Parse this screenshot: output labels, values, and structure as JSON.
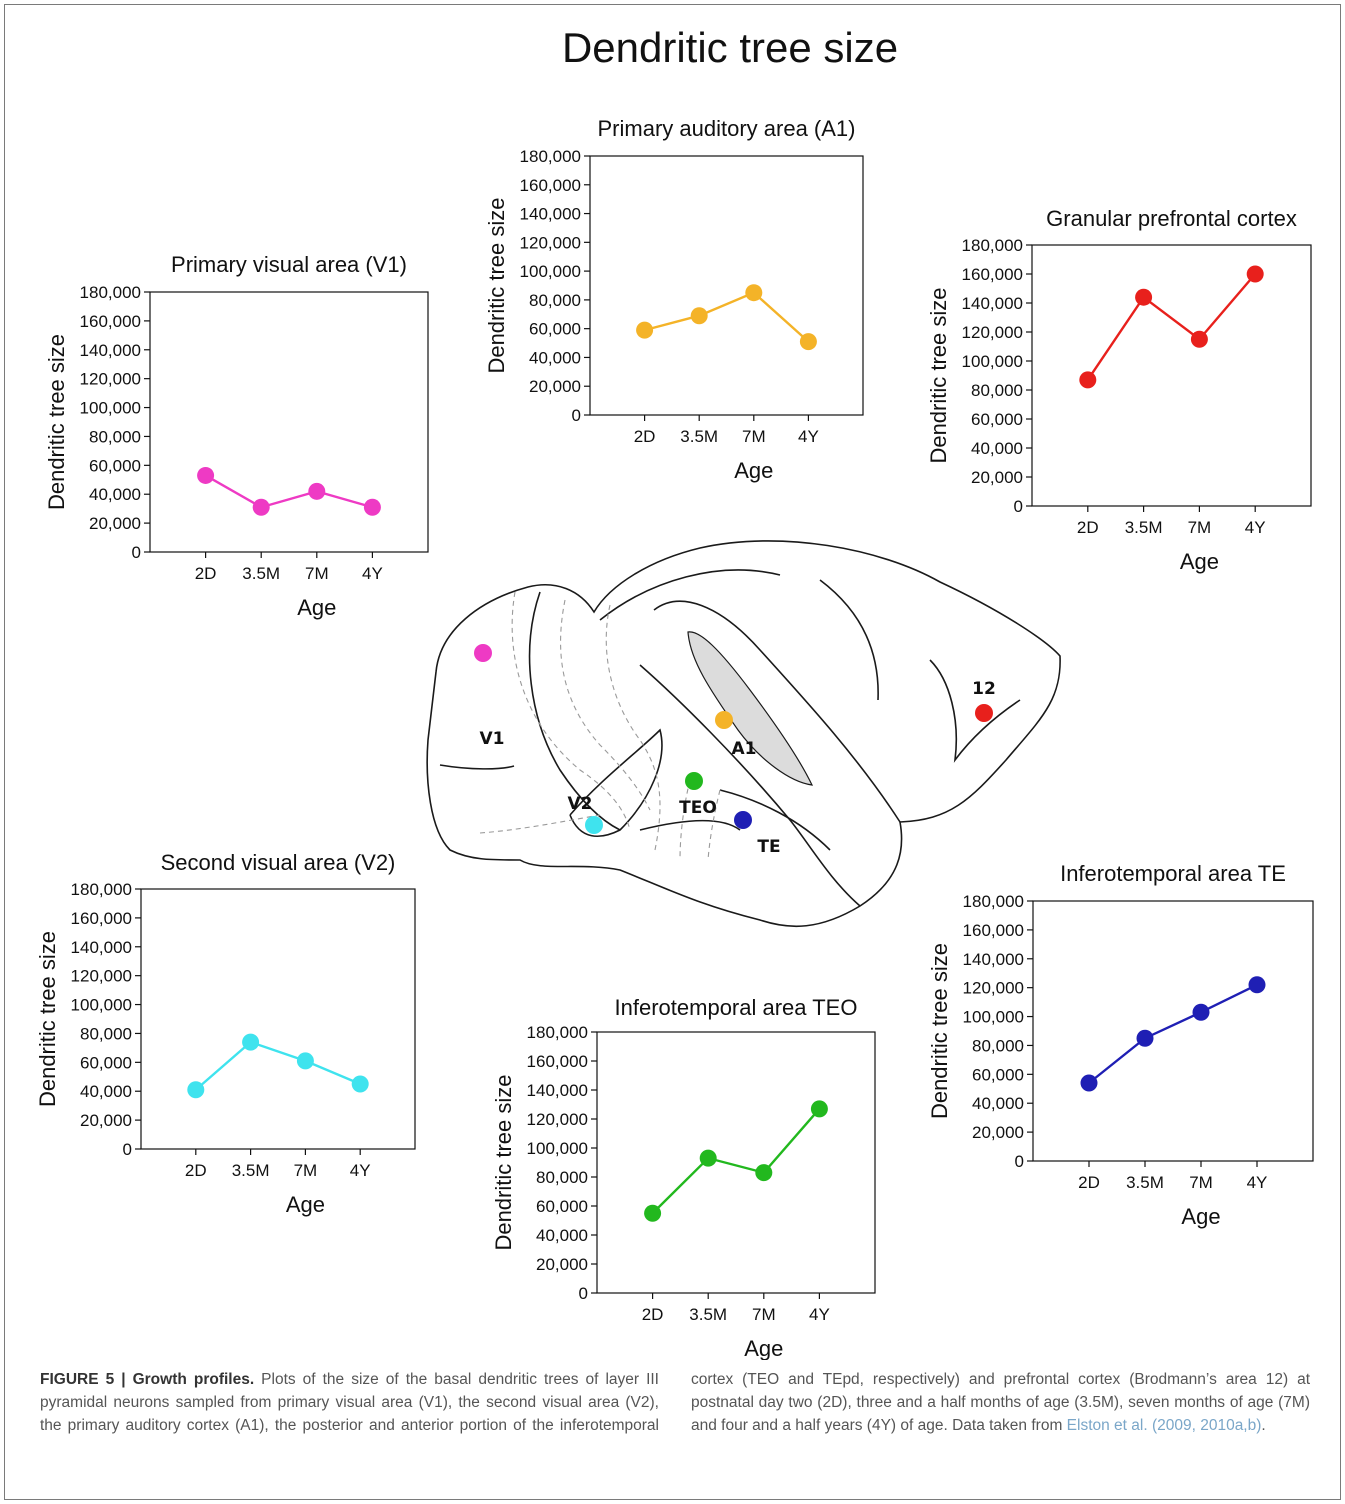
{
  "main_title": "Dendritic tree size",
  "chart_data": [
    {
      "id": "v1",
      "type": "line",
      "title": "Primary visual area (V1)",
      "xlabel": "Age",
      "ylabel": "Dendritic tree size",
      "categories": [
        "2D",
        "3.5M",
        "7M",
        "4Y"
      ],
      "values": [
        53000,
        31000,
        42000,
        31000
      ],
      "ylim": [
        0,
        180000
      ],
      "yticks": [
        "0",
        "20,000",
        "40,000",
        "60,000",
        "80,000",
        "100,000",
        "120,000",
        "140,000",
        "160,000",
        "180,000"
      ],
      "color": "#ee3ac4"
    },
    {
      "id": "a1",
      "type": "line",
      "title": "Primary auditory area (A1)",
      "xlabel": "Age",
      "ylabel": "Dendritic tree size",
      "categories": [
        "2D",
        "3.5M",
        "7M",
        "4Y"
      ],
      "values": [
        59000,
        69000,
        85000,
        51000
      ],
      "ylim": [
        0,
        180000
      ],
      "yticks": [
        "0",
        "20,000",
        "40,000",
        "60,000",
        "80,000",
        "100,000",
        "120,000",
        "140,000",
        "160,000",
        "180,000"
      ],
      "color": "#f4b328"
    },
    {
      "id": "pfc",
      "type": "line",
      "title": "Granular prefrontal cortex",
      "xlabel": "Age",
      "ylabel": "Dendritic tree size",
      "categories": [
        "2D",
        "3.5M",
        "7M",
        "4Y"
      ],
      "values": [
        87000,
        144000,
        115000,
        160000
      ],
      "ylim": [
        0,
        180000
      ],
      "yticks": [
        "0",
        "20,000",
        "40,000",
        "60,000",
        "80,000",
        "100,000",
        "120,000",
        "140,000",
        "160,000",
        "180,000"
      ],
      "color": "#e8201c"
    },
    {
      "id": "v2",
      "type": "line",
      "title": "Second visual area (V2)",
      "xlabel": "Age",
      "ylabel": "Dendritic tree size",
      "categories": [
        "2D",
        "3.5M",
        "7M",
        "4Y"
      ],
      "values": [
        41000,
        74000,
        61000,
        45000
      ],
      "ylim": [
        0,
        180000
      ],
      "yticks": [
        "0",
        "20,000",
        "40,000",
        "60,000",
        "80,000",
        "100,000",
        "120,000",
        "140,000",
        "160,000",
        "180,000"
      ],
      "color": "#3fe3ee"
    },
    {
      "id": "teo",
      "type": "line",
      "title": "Inferotemporal area TEO",
      "xlabel": "Age",
      "ylabel": "Dendritic tree size",
      "categories": [
        "2D",
        "3.5M",
        "7M",
        "4Y"
      ],
      "values": [
        55000,
        93000,
        83000,
        127000
      ],
      "ylim": [
        0,
        180000
      ],
      "yticks": [
        "0",
        "20,000",
        "40,000",
        "60,000",
        "80,000",
        "100,000",
        "120,000",
        "140,000",
        "160,000",
        "180,000"
      ],
      "color": "#22b81e"
    },
    {
      "id": "te",
      "type": "line",
      "title": "Inferotemporal area TE",
      "xlabel": "Age",
      "ylabel": "Dendritic tree size",
      "categories": [
        "2D",
        "3.5M",
        "7M",
        "4Y"
      ],
      "values": [
        54000,
        85000,
        103000,
        122000
      ],
      "ylim": [
        0,
        180000
      ],
      "yticks": [
        "0",
        "20,000",
        "40,000",
        "60,000",
        "80,000",
        "100,000",
        "120,000",
        "140,000",
        "160,000",
        "180,000"
      ],
      "color": "#1f1fb4"
    }
  ],
  "brain_labels": {
    "v1": "V1",
    "v2": "V2",
    "a1": "A1",
    "teo": "TEO",
    "te": "TE",
    "area12": "12"
  },
  "caption": {
    "lead": "FIGURE 5 | Growth profiles.",
    "body": " Plots of the size of the basal dendritic trees of layer III pyramidal neurons sampled from primary visual area (V1), the second visual area (V2), the primary auditory cortex (A1), the posterior and anterior portion of the inferotemporal cortex (TEO and TEpd, respectively) and prefrontal cortex (Brodmann’s area 12) at postnatal day two (2D), three and a half months of age (3.5M), seven months of age (7M) and four and a half years (4Y) of age. Data taken from ",
    "citation": "Elston et al. (2009, 2010a,b)",
    "end": "."
  }
}
